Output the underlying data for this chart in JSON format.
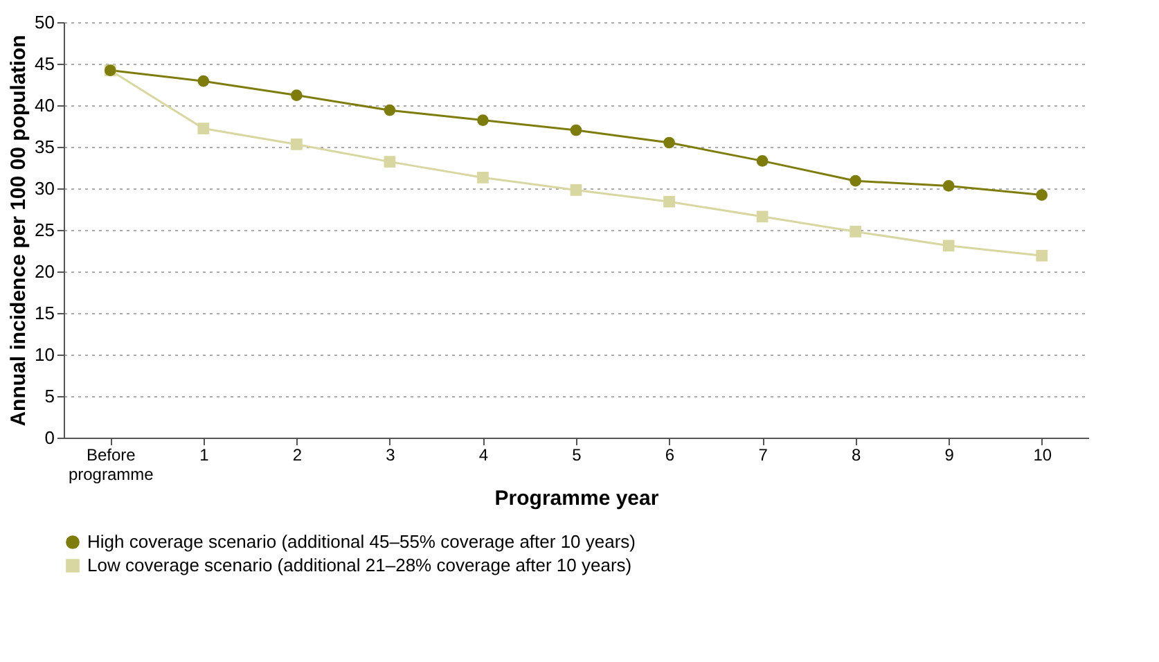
{
  "chart_data": {
    "type": "line",
    "xlabel": "Programme year",
    "ylabel": "Annual incidence per 100 00 population",
    "categories": [
      "Before programme",
      "1",
      "2",
      "3",
      "4",
      "5",
      "6",
      "7",
      "8",
      "9",
      "10"
    ],
    "series": [
      {
        "name": "High coverage scenario (additional 45–55% coverage after 10 years)",
        "color": "#7f7c0e",
        "marker": "circle",
        "values": [
          44.2,
          42.9,
          41.2,
          39.4,
          38.2,
          37.0,
          35.5,
          33.3,
          30.9,
          30.3,
          29.2
        ]
      },
      {
        "name": "Low coverage scenario (additional 21–28% coverage after 10 years)",
        "color": "#d9d7a1",
        "marker": "square",
        "values": [
          44.2,
          37.2,
          35.3,
          33.2,
          31.3,
          29.8,
          28.4,
          26.6,
          24.8,
          23.1,
          21.9
        ]
      }
    ],
    "ylim": [
      0,
      50
    ],
    "yticks": [
      0,
      5,
      10,
      15,
      20,
      25,
      30,
      35,
      40,
      45,
      50
    ],
    "grid": "y",
    "legend": "bottom",
    "line_style": "solid"
  }
}
